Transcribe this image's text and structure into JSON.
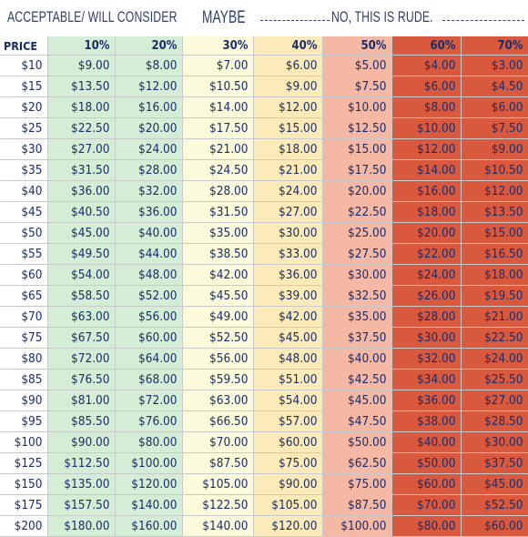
{
  "header": {
    "acceptable": "ACCEPTABLE/ WILL CONSIDER",
    "maybe": "MAYBE",
    "rude": "NO, THIS IS RUDE."
  },
  "table": {
    "columns": [
      "PRICE",
      "10%",
      "20%",
      "30%",
      "40%",
      "50%",
      "60%",
      "70%"
    ],
    "rows": [
      [
        "$10",
        "$9.00",
        "$8.00",
        "$7.00",
        "$6.00",
        "$5.00",
        "$4.00",
        "$3.00"
      ],
      [
        "$15",
        "$13.50",
        "$12.00",
        "$10.50",
        "$9.00",
        "$7.50",
        "$6.00",
        "$4.50"
      ],
      [
        "$20",
        "$18.00",
        "$16.00",
        "$14.00",
        "$12.00",
        "$10.00",
        "$8.00",
        "$6.00"
      ],
      [
        "$25",
        "$22.50",
        "$20.00",
        "$17.50",
        "$15.00",
        "$12.50",
        "$10.00",
        "$7.50"
      ],
      [
        "$30",
        "$27.00",
        "$24.00",
        "$21.00",
        "$18.00",
        "$15.00",
        "$12.00",
        "$9.00"
      ],
      [
        "$35",
        "$31.50",
        "$28.00",
        "$24.50",
        "$21.00",
        "$17.50",
        "$14.00",
        "$10.50"
      ],
      [
        "$40",
        "$36.00",
        "$32.00",
        "$28.00",
        "$24.00",
        "$20.00",
        "$16.00",
        "$12.00"
      ],
      [
        "$45",
        "$40.50",
        "$36.00",
        "$31.50",
        "$27.00",
        "$22.50",
        "$18.00",
        "$13.50"
      ],
      [
        "$50",
        "$45.00",
        "$40.00",
        "$35.00",
        "$30.00",
        "$25.00",
        "$20.00",
        "$15.00"
      ],
      [
        "$55",
        "$49.50",
        "$44.00",
        "$38.50",
        "$33.00",
        "$27.50",
        "$22.00",
        "$16.50"
      ],
      [
        "$60",
        "$54.00",
        "$48.00",
        "$42.00",
        "$36.00",
        "$30.00",
        "$24.00",
        "$18.00"
      ],
      [
        "$65",
        "$58.50",
        "$52.00",
        "$45.50",
        "$39.00",
        "$32.50",
        "$26.00",
        "$19.50"
      ],
      [
        "$70",
        "$63.00",
        "$56.00",
        "$49.00",
        "$42.00",
        "$35.00",
        "$28.00",
        "$21.00"
      ],
      [
        "$75",
        "$67.50",
        "$60.00",
        "$52.50",
        "$45.00",
        "$37.50",
        "$30.00",
        "$22.50"
      ],
      [
        "$80",
        "$72.00",
        "$64.00",
        "$56.00",
        "$48.00",
        "$40.00",
        "$32.00",
        "$24.00"
      ],
      [
        "$85",
        "$76.50",
        "$68.00",
        "$59.50",
        "$51.00",
        "$42.50",
        "$34.00",
        "$25.50"
      ],
      [
        "$90",
        "$81.00",
        "$72.00",
        "$63.00",
        "$54.00",
        "$45.00",
        "$36.00",
        "$27.00"
      ],
      [
        "$95",
        "$85.50",
        "$76.00",
        "$66.50",
        "$57.00",
        "$47.50",
        "$38.00",
        "$28.50"
      ],
      [
        "$100",
        "$90.00",
        "$80.00",
        "$70.00",
        "$60.00",
        "$50.00",
        "$40.00",
        "$30.00"
      ],
      [
        "$125",
        "$112.50",
        "$100.00",
        "$87.50",
        "$75.00",
        "$62.50",
        "$50.00",
        "$37.50"
      ],
      [
        "$150",
        "$135.00",
        "$120.00",
        "$105.00",
        "$90.00",
        "$75.00",
        "$60.00",
        "$45.00"
      ],
      [
        "$175",
        "$157.50",
        "$140.00",
        "$122.50",
        "$105.00",
        "$87.50",
        "$70.00",
        "$52.50"
      ],
      [
        "$200",
        "$180.00",
        "$160.00",
        "$140.00",
        "$120.00",
        "$100.00",
        "$80.00",
        "$60.00"
      ]
    ]
  },
  "colors": {
    "acceptable": "#d4edd5",
    "maybe_light": "#fbfadb",
    "maybe": "#fcebb8",
    "rude_light": "#f4b8a5",
    "rude": "#d9593e",
    "text": "#1a2d6b"
  }
}
